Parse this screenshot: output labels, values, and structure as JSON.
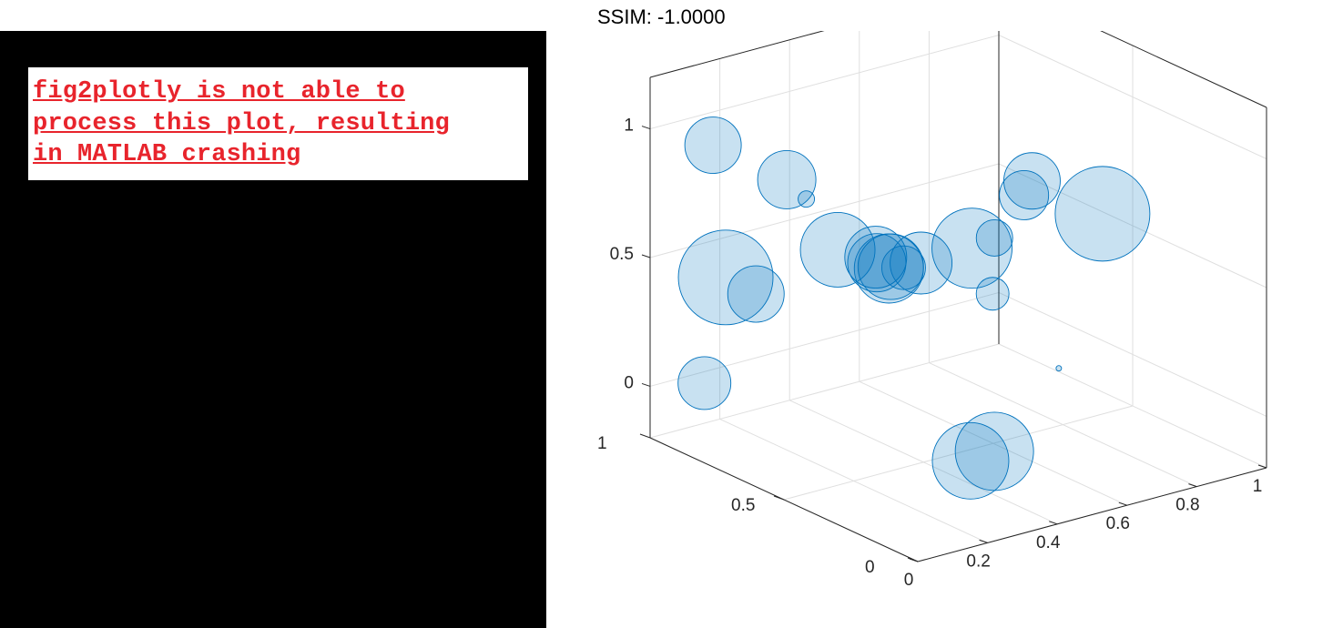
{
  "title": "SSIM: -1.0000",
  "error_message": {
    "lines": [
      "fig2plotly is not able to",
      "process this plot, resulting",
      "in MATLAB crashing"
    ]
  },
  "colors": {
    "bubble_fill": "#c5dcee",
    "bubble_edge": "#0072bd",
    "error_text": "#e8242c",
    "panel_background": "#000000"
  },
  "chart_data": {
    "type": "scatter",
    "subtype": "3d-bubble",
    "title": "SSIM: -1.0000",
    "xlabel": "",
    "ylabel": "",
    "zlabel": "",
    "xlim": [
      0,
      1
    ],
    "ylim": [
      0,
      1
    ],
    "zlim": [
      -0.2,
      1.2
    ],
    "x_ticks": [
      "0",
      "0.2",
      "0.4",
      "0.6",
      "0.8",
      "1"
    ],
    "y_ticks": [
      "0",
      "0.5",
      "1"
    ],
    "z_ticks": [
      "0",
      "0.5",
      "1"
    ],
    "grid": true,
    "legend": "none",
    "marker_alpha": 0.3,
    "points": [
      {
        "x": 0.05,
        "y": 0.83,
        "z": 1.0,
        "size": 31
      },
      {
        "x": 0.2,
        "y": 0.75,
        "z": 0.85,
        "size": 32
      },
      {
        "x": 0.21,
        "y": 0.69,
        "z": 0.8,
        "size": 9
      },
      {
        "x": 0.14,
        "y": 0.9,
        "z": 0.42,
        "size": 52
      },
      {
        "x": 0.15,
        "y": 0.8,
        "z": 0.4,
        "size": 31
      },
      {
        "x": 0.3,
        "y": 0.69,
        "z": 0.57,
        "size": 41
      },
      {
        "x": 0.32,
        "y": 0.57,
        "z": 0.57,
        "size": 32
      },
      {
        "x": 0.34,
        "y": 0.6,
        "z": 0.57,
        "size": 34
      },
      {
        "x": 0.36,
        "y": 0.57,
        "z": 0.54,
        "size": 36
      },
      {
        "x": 0.37,
        "y": 0.59,
        "z": 0.52,
        "size": 38
      },
      {
        "x": 0.47,
        "y": 0.6,
        "z": 0.5,
        "size": 34
      },
      {
        "x": 0.42,
        "y": 0.6,
        "z": 0.5,
        "size": 24
      },
      {
        "x": 0.55,
        "y": 0.43,
        "z": 0.65,
        "size": 20
      },
      {
        "x": 0.57,
        "y": 0.54,
        "z": 0.55,
        "size": 44
      },
      {
        "x": 0.56,
        "y": 0.45,
        "z": 0.42,
        "size": 18
      },
      {
        "x": 0.65,
        "y": 0.42,
        "z": 0.84,
        "size": 31
      },
      {
        "x": 0.65,
        "y": 0.45,
        "z": 0.77,
        "size": 27
      },
      {
        "x": 0.76,
        "y": 0.3,
        "z": 0.73,
        "size": 52
      },
      {
        "x": 0.65,
        "y": 0.32,
        "z": 0.16,
        "size": 3
      },
      {
        "x": 0.01,
        "y": 0.81,
        "z": 0.1,
        "size": 29
      },
      {
        "x": 0.42,
        "y": 0.35,
        "z": -0.13,
        "size": 42
      },
      {
        "x": 0.45,
        "y": 0.3,
        "z": -0.08,
        "size": 43
      }
    ]
  }
}
